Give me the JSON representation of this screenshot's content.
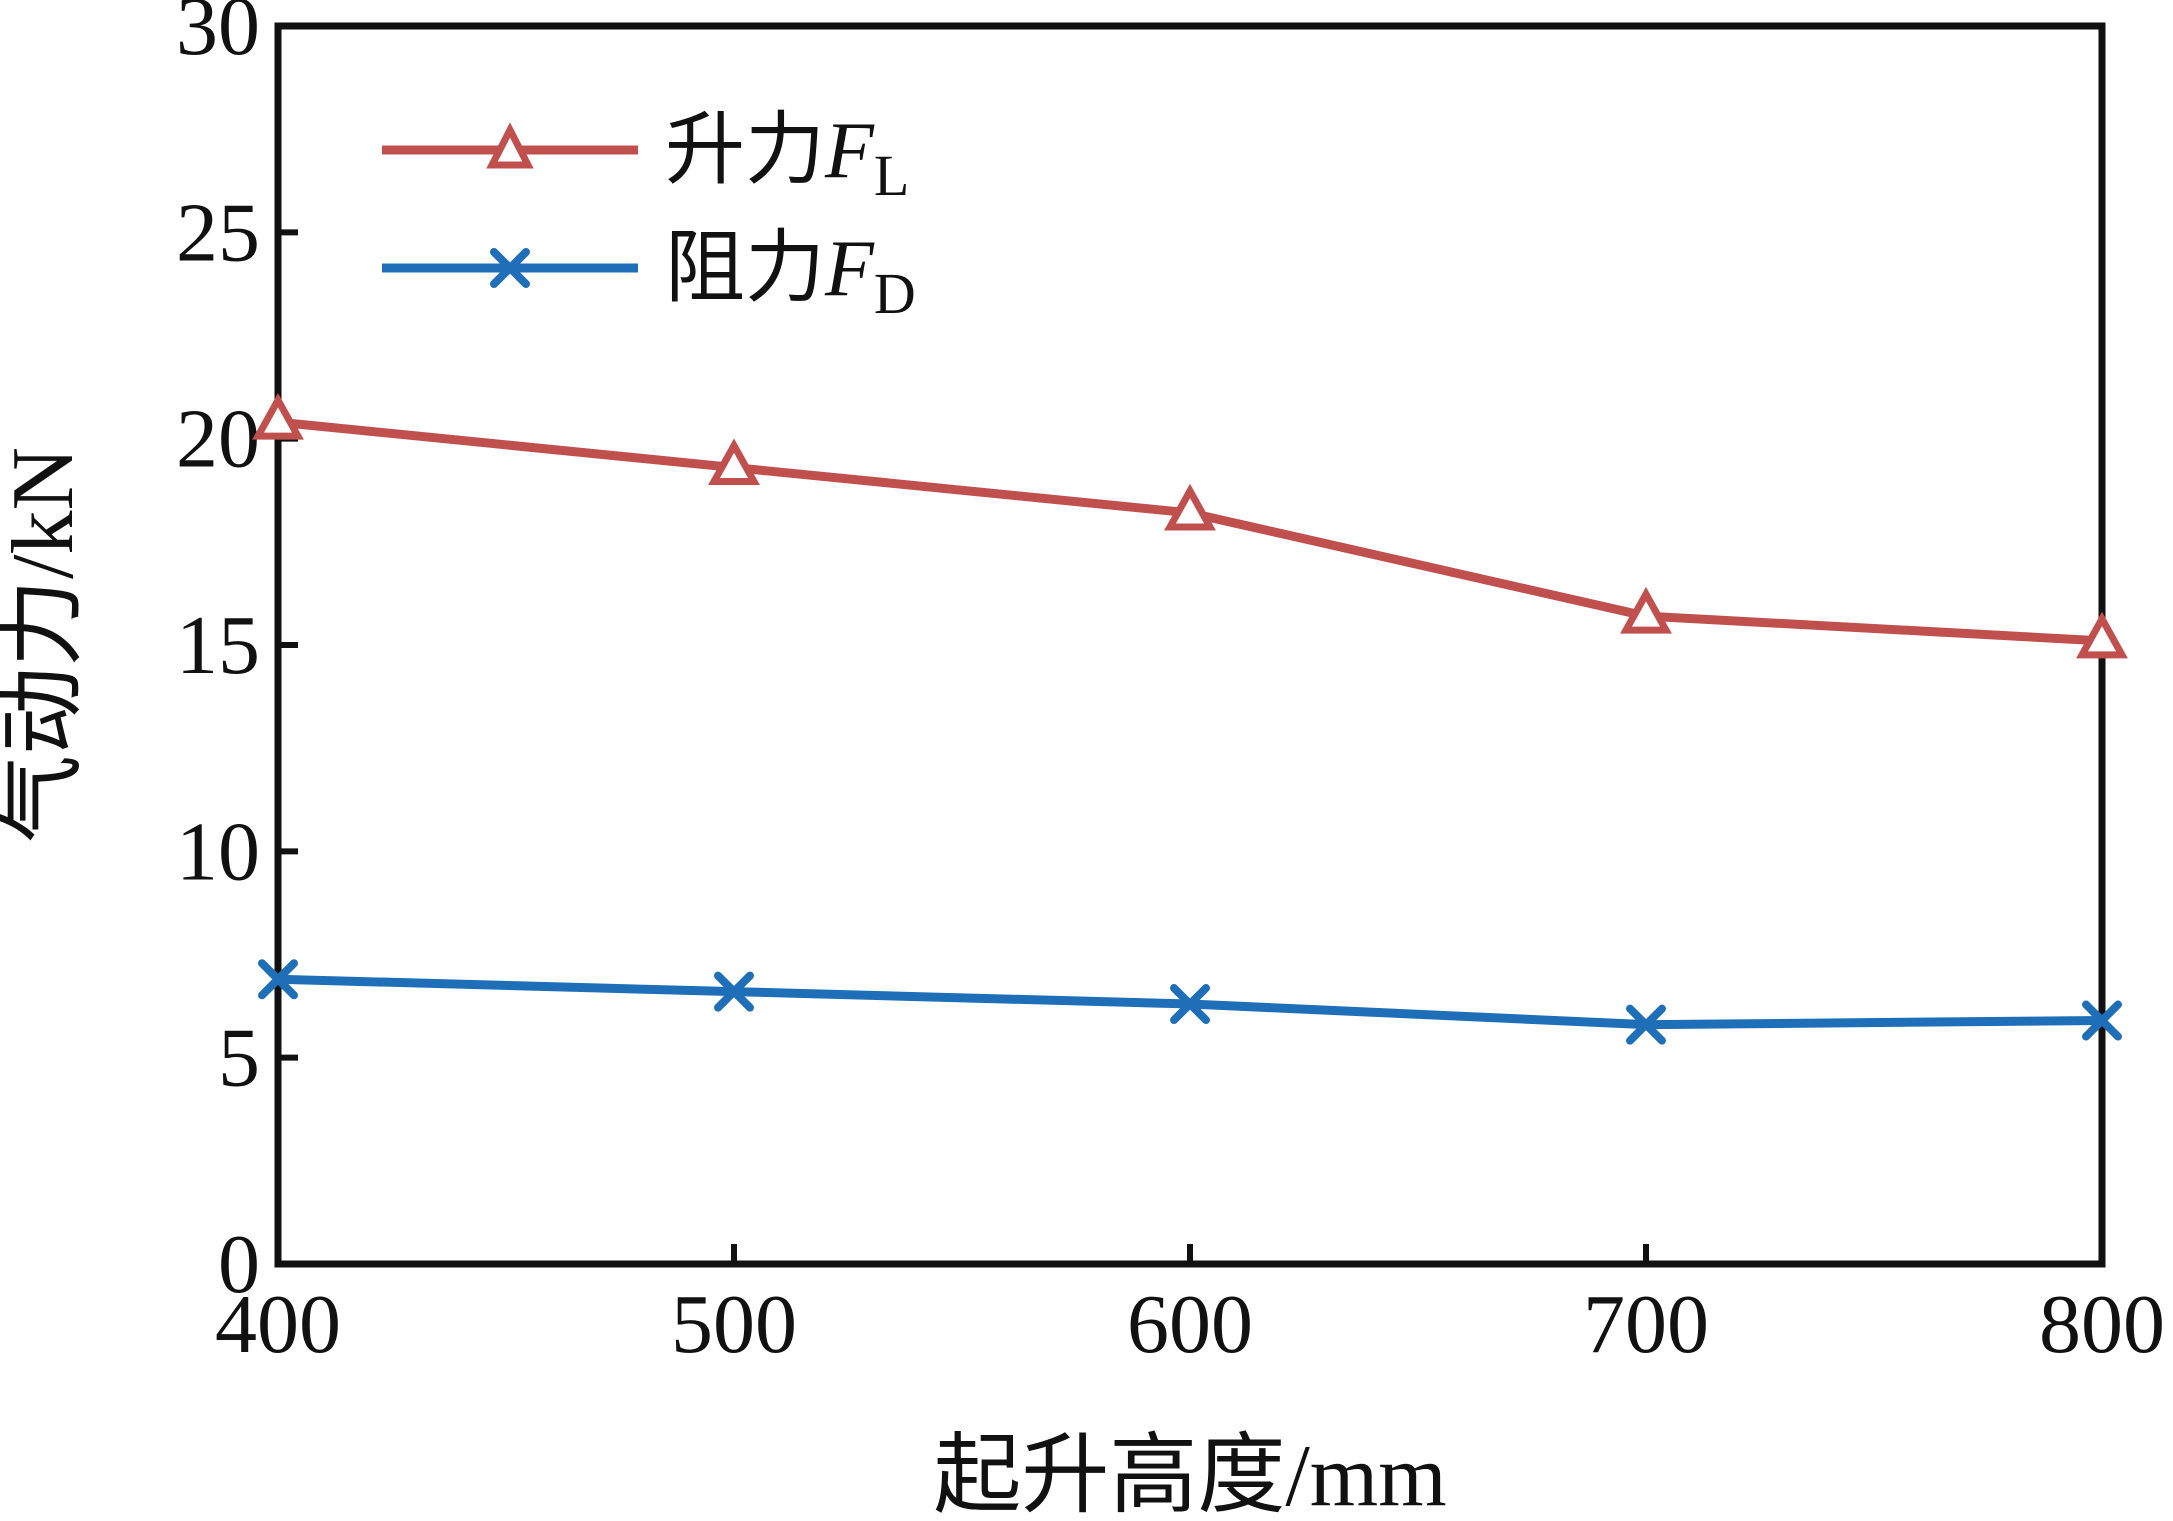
{
  "chart_data": {
    "type": "line",
    "title": "",
    "xlabel": "起升高度/mm",
    "ylabel": "气动力/kN",
    "x": [
      400,
      500,
      600,
      700,
      800
    ],
    "xticks": [
      400,
      500,
      600,
      700,
      800
    ],
    "yticks": [
      0,
      5,
      10,
      15,
      20,
      25,
      30
    ],
    "xlim": [
      400,
      800
    ],
    "ylim": [
      0,
      30
    ],
    "grid": false,
    "legend_position": "top-left",
    "series": [
      {
        "name": "升力FL",
        "legend_main": "升力",
        "legend_symbol": "F",
        "legend_sub": "L",
        "values": [
          20.4,
          19.3,
          18.2,
          15.7,
          15.1
        ],
        "color": "#c0504d",
        "marker": "triangle"
      },
      {
        "name": "阻力FD",
        "legend_main": "阻力",
        "legend_symbol": "F",
        "legend_sub": "D",
        "values": [
          6.9,
          6.6,
          6.3,
          5.8,
          5.9
        ],
        "color": "#1f6fb8",
        "marker": "x"
      }
    ]
  }
}
